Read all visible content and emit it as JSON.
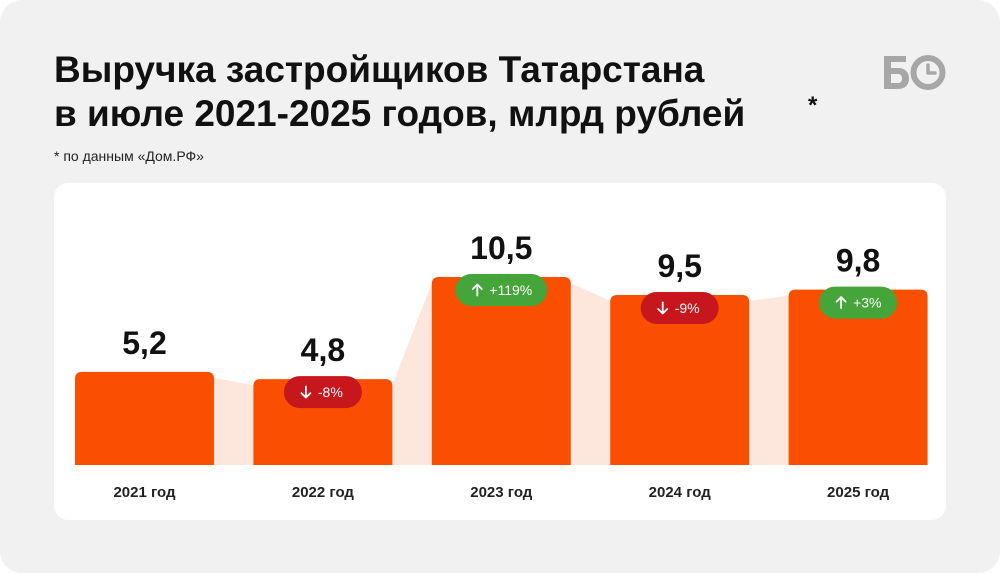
{
  "header": {
    "title": "Выручка застройщиков Татарстана\nв июле 2021-2025 годов, млрд рублей",
    "title_asterisk": "*",
    "note": "* по данным «Дом.РФ»",
    "logo_text": "БО"
  },
  "colors": {
    "background": "#f1f1f1",
    "card": "#ffffff",
    "bar": "#fb4f00",
    "connector": "#fde6dc",
    "badge_up": "#46a53a",
    "badge_down": "#c8161d",
    "text": "#111111",
    "logo": "#a7a7a7"
  },
  "chart_data": {
    "type": "bar",
    "title": "Выручка застройщиков Татарстана в июле 2021-2025 годов, млрд рублей",
    "categories": [
      "2021 год",
      "2022 год",
      "2023 год",
      "2024 год",
      "2025 год"
    ],
    "values": [
      5.2,
      4.8,
      10.5,
      9.5,
      9.8
    ],
    "value_labels": [
      "5,2",
      "4,8",
      "10,5",
      "9,5",
      "9,8"
    ],
    "changes": [
      null,
      {
        "direction": "down",
        "label": "-8%"
      },
      {
        "direction": "up",
        "label": "+119%"
      },
      {
        "direction": "down",
        "label": "-9%"
      },
      {
        "direction": "up",
        "label": "+3%"
      }
    ],
    "grid": false
  }
}
